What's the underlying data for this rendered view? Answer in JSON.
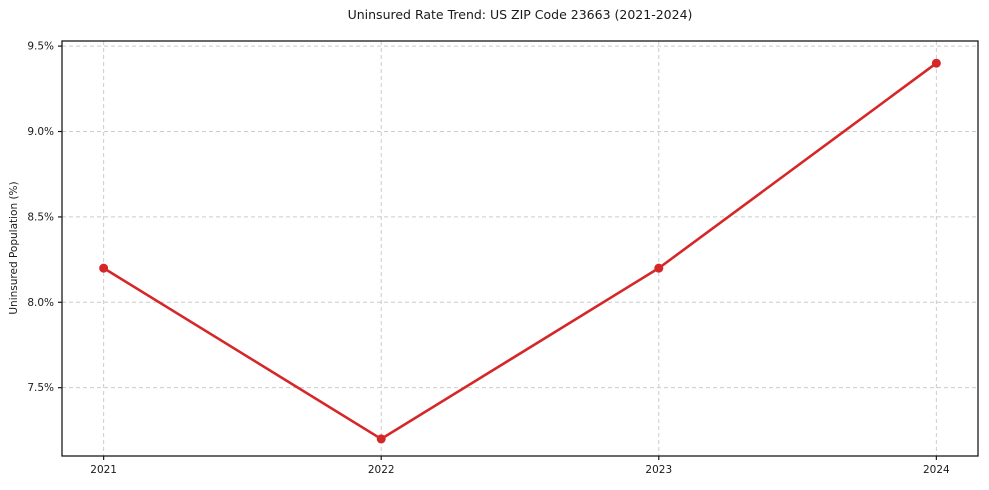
{
  "chart_data": {
    "type": "line",
    "title": "Uninsured Rate Trend: US ZIP Code 23663 (2021-2024)",
    "xlabel": "",
    "ylabel": "Uninsured Population (%)",
    "x": [
      2021,
      2022,
      2023,
      2024
    ],
    "values": [
      8.2,
      7.2,
      8.2,
      9.4
    ],
    "xticks": {
      "values": [
        2021,
        2022,
        2023,
        2024
      ],
      "labels": [
        "2021",
        "2022",
        "2023",
        "2024"
      ]
    },
    "yticks": {
      "values": [
        7.5,
        8.0,
        8.5,
        9.0,
        9.5
      ],
      "labels": [
        "7.5%",
        "8.0%",
        "8.5%",
        "9.0%",
        "9.5%"
      ]
    },
    "xlim": [
      2020.85,
      2024.15
    ],
    "ylim": [
      7.1,
      9.53
    ],
    "grid": true,
    "grid_style": "dashed",
    "legend": false,
    "marker": "circle",
    "colors": {
      "line": "#d62728",
      "marker": "#d62728",
      "grid": "#cccccc",
      "spine": "#1a1a1a",
      "text": "#1a1a1a",
      "background": "#ffffff"
    }
  }
}
